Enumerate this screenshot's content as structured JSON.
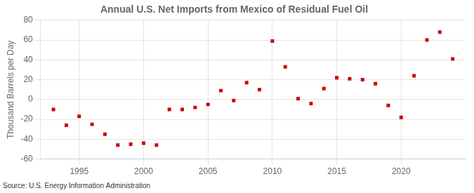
{
  "chart_data": {
    "type": "scatter",
    "title": "Annual U.S. Net Imports from Mexico of Residual Fuel Oil",
    "ylabel": "Thousand Barrels per Day",
    "source": "Source: U.S. Energy Information Administration",
    "x": [
      1993,
      1994,
      1995,
      1996,
      1997,
      1998,
      1999,
      2000,
      2001,
      2002,
      2003,
      2004,
      2005,
      2006,
      2007,
      2008,
      2009,
      2010,
      2011,
      2012,
      2013,
      2014,
      2015,
      2016,
      2017,
      2018,
      2019,
      2020,
      2021,
      2022,
      2023,
      2024
    ],
    "values": [
      -10,
      -26,
      -17,
      -25,
      -35,
      -46,
      -45,
      -44,
      -46,
      -10,
      -10,
      -8,
      -5,
      9,
      -1,
      17,
      10,
      59,
      33,
      1,
      -4,
      11,
      22,
      21,
      20,
      16,
      -6,
      -18,
      24,
      60,
      68,
      41
    ],
    "color": "#cc0000",
    "marker": "square",
    "xlim": [
      1992,
      2025
    ],
    "xticks": [
      1995,
      2000,
      2005,
      2010,
      2015,
      2020
    ],
    "ylim": [
      -60,
      80
    ],
    "yticks": [
      -60,
      -40,
      -20,
      0,
      20,
      40,
      60,
      80
    ],
    "grid": true
  }
}
